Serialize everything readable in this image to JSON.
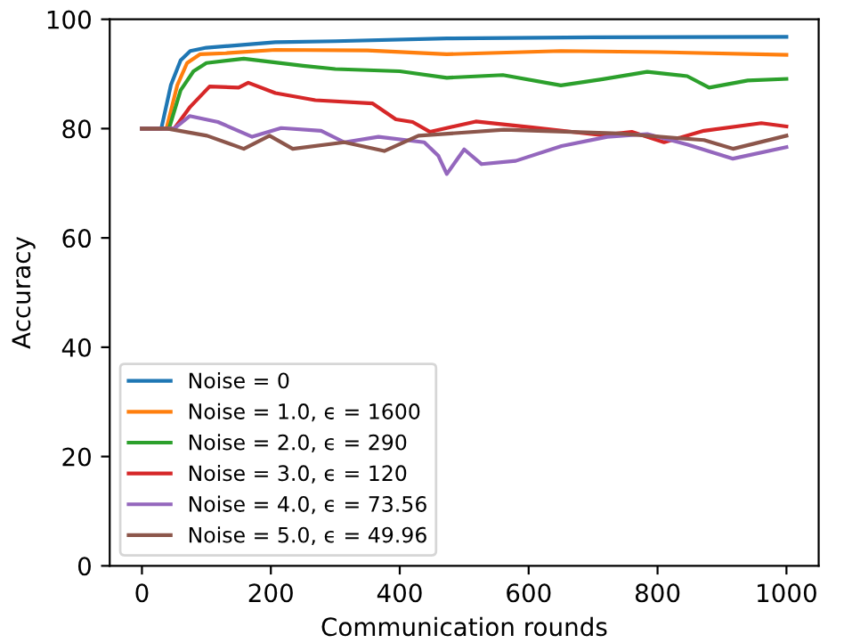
{
  "chart_data": {
    "type": "line",
    "xlabel": "Communication rounds",
    "ylabel": "Accuracy",
    "xlim": [
      -50,
      1050
    ],
    "ylim": [
      0,
      100
    ],
    "xticks": [
      0,
      200,
      400,
      600,
      800,
      1000
    ],
    "yticks": [
      0,
      20,
      40,
      60,
      80,
      100
    ],
    "grid": false,
    "legend": "bottom left",
    "marker": "none",
    "line_style": "solid",
    "series": [
      {
        "name": "Noise = 0",
        "color": "#1f77b4",
        "x": [
          0,
          30,
          45,
          60,
          75,
          100,
          207,
          300,
          473,
          700,
          1000
        ],
        "values": [
          80,
          80,
          88,
          92.5,
          94.2,
          94.8,
          95.8,
          96,
          96.5,
          96.7,
          96.8
        ]
      },
      {
        "name": "Noise = 1.0, ϵ = 1600",
        "color": "#ff7f0e",
        "x": [
          0,
          38,
          55,
          70,
          90,
          130,
          207,
          350,
          473,
          650,
          800,
          1000
        ],
        "values": [
          80,
          80,
          88,
          92,
          93.6,
          93.8,
          94.4,
          94.3,
          93.6,
          94.2,
          94,
          93.5
        ]
      },
      {
        "name": "Noise = 2.0, ϵ = 290",
        "color": "#2ca02c",
        "x": [
          0,
          42,
          60,
          80,
          100,
          158,
          250,
          300,
          400,
          473,
          560,
          650,
          713,
          784,
          846,
          880,
          940,
          1000
        ],
        "values": [
          80,
          80,
          87,
          90.5,
          92,
          92.8,
          91.5,
          90.9,
          90.5,
          89.3,
          89.8,
          87.9,
          89,
          90.4,
          89.6,
          87.5,
          88.8,
          89.1
        ]
      },
      {
        "name": "Noise = 3.0, ϵ = 120",
        "color": "#d62728",
        "x": [
          0,
          50,
          75,
          105,
          150,
          165,
          207,
          269,
          358,
          394,
          420,
          447,
          518,
          606,
          713,
          760,
          810,
          872,
          961,
          1000
        ],
        "values": [
          80,
          80,
          84,
          87.7,
          87.5,
          88.4,
          86.5,
          85.2,
          84.6,
          81.7,
          81.2,
          79.4,
          81.3,
          80.2,
          78.8,
          79.4,
          77.5,
          79.6,
          81,
          80.4
        ]
      },
      {
        "name": "Noise = 4.0, ϵ = 73.56",
        "color": "#9467bd",
        "x": [
          0,
          50,
          74,
          118,
          171,
          216,
          278,
          314,
          367,
          438,
          460,
          473,
          500,
          527,
          580,
          651,
          722,
          784,
          846,
          917,
          1000
        ],
        "values": [
          80,
          80,
          82.3,
          81.2,
          78.5,
          80.1,
          79.6,
          77.5,
          78.5,
          77.5,
          75,
          71.7,
          76.2,
          73.5,
          74.1,
          76.8,
          78.5,
          79,
          77.1,
          74.5,
          76.6
        ]
      },
      {
        "name": "Noise = 5.0, ϵ = 49.96",
        "color": "#8c564b",
        "x": [
          0,
          39,
          101,
          158,
          198,
          234,
          314,
          376,
          429,
          562,
          740,
          872,
          917,
          1000
        ],
        "values": [
          80,
          80,
          78.7,
          76.3,
          78.7,
          76.3,
          77.5,
          75.9,
          78.7,
          79.8,
          79.1,
          77.9,
          76.3,
          78.7
        ]
      }
    ]
  }
}
